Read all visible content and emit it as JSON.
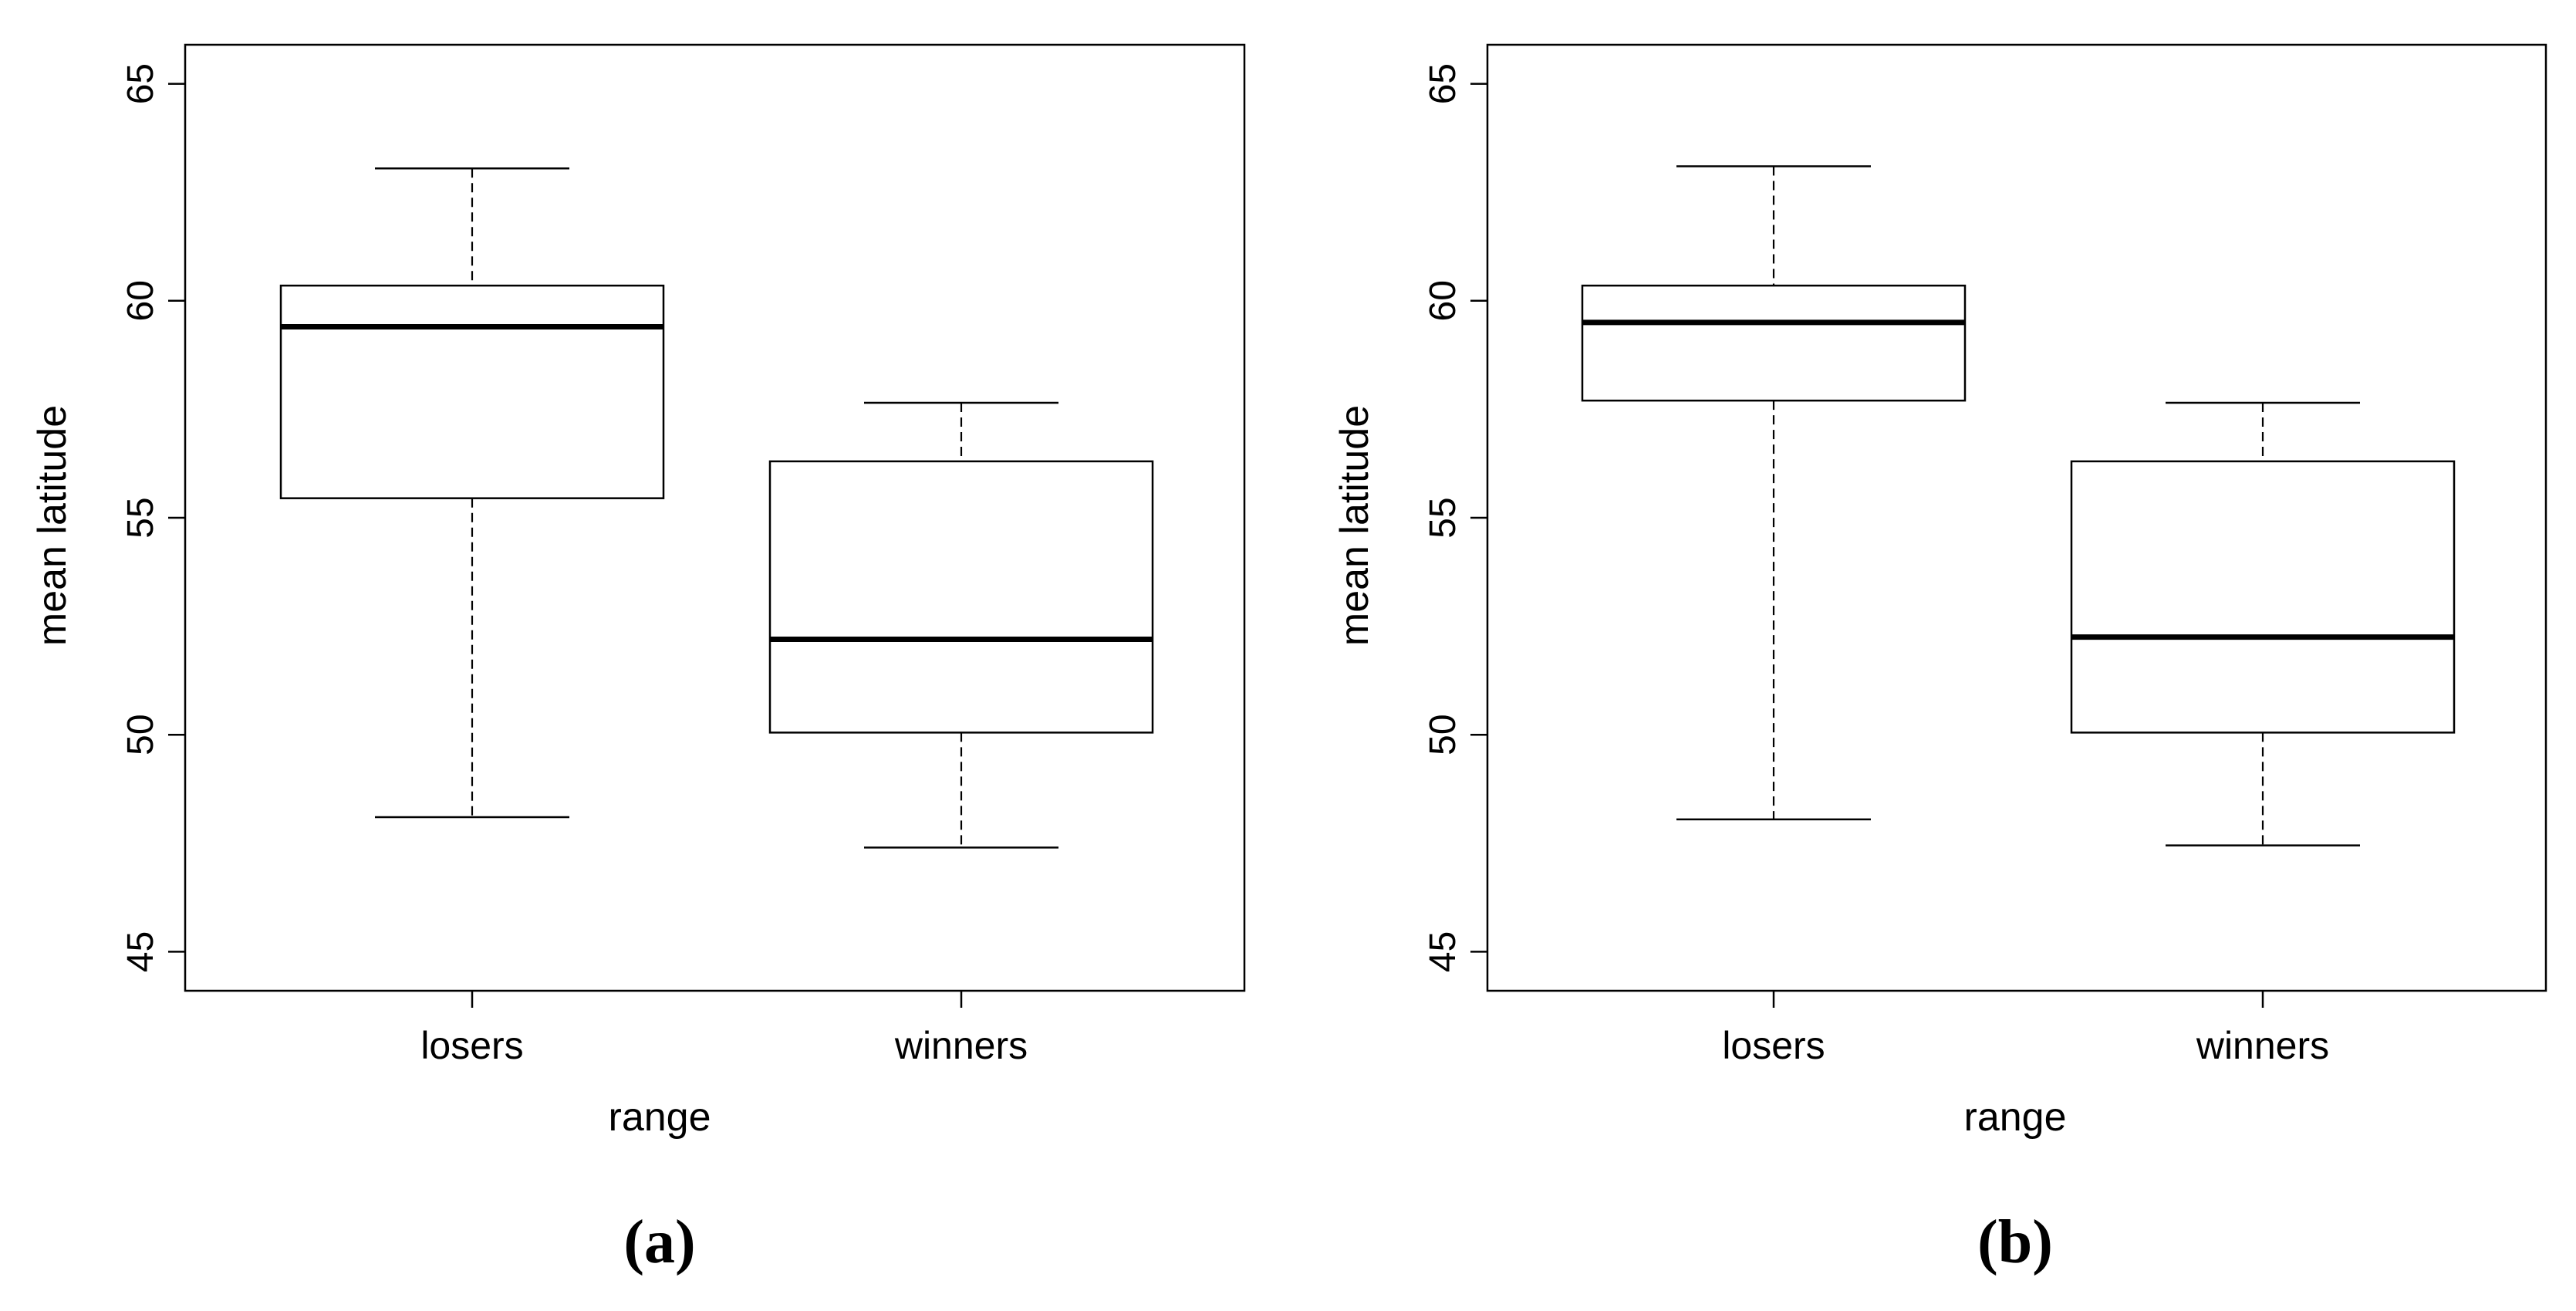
{
  "chart_data": [
    {
      "type": "boxplot",
      "panel_label": "(a)",
      "xlabel": "range",
      "ylabel": "mean latitude",
      "ylim": [
        44.1,
        65.9
      ],
      "yticks": [
        45,
        50,
        55,
        60,
        65
      ],
      "categories": [
        "losers",
        "winners"
      ],
      "boxes": [
        {
          "category": "losers",
          "whisker_low": 48.1,
          "q1": 55.45,
          "median": 59.4,
          "q3": 60.35,
          "whisker_high": 63.05
        },
        {
          "category": "winners",
          "whisker_low": 47.4,
          "q1": 50.05,
          "median": 52.2,
          "q3": 56.3,
          "whisker_high": 57.65
        }
      ],
      "grid": false,
      "legend": "none"
    },
    {
      "type": "boxplot",
      "panel_label": "(b)",
      "xlabel": "range",
      "ylabel": "mean latitude",
      "ylim": [
        44.1,
        65.9
      ],
      "yticks": [
        45,
        50,
        55,
        60,
        65
      ],
      "categories": [
        "losers",
        "winners"
      ],
      "boxes": [
        {
          "category": "losers",
          "whisker_low": 48.05,
          "q1": 57.7,
          "median": 59.5,
          "q3": 60.35,
          "whisker_high": 63.1
        },
        {
          "category": "winners",
          "whisker_low": 47.45,
          "q1": 50.05,
          "median": 52.25,
          "q3": 56.3,
          "whisker_high": 57.65
        }
      ],
      "grid": false,
      "legend": "none"
    }
  ]
}
